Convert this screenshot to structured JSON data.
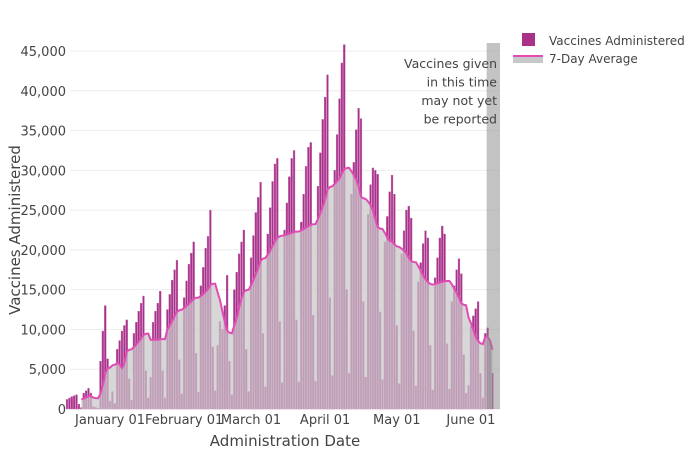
{
  "chart_data": {
    "type": "bar",
    "title": "",
    "xlabel": "Administration Date",
    "ylabel": "Vaccines Administered",
    "ylim": [
      0,
      46000
    ],
    "yticks": [
      0,
      5000,
      10000,
      15000,
      20000,
      25000,
      30000,
      35000,
      40000,
      45000
    ],
    "ytick_labels": [
      "0",
      "5,000",
      "10,000",
      "15,000",
      "20,000",
      "25,000",
      "30,000",
      "35,000",
      "40,000",
      "45,000"
    ],
    "xticks": [
      {
        "label": "January 01",
        "day_index": 18
      },
      {
        "label": "February 01",
        "day_index": 49
      },
      {
        "label": "March 01",
        "day_index": 77
      },
      {
        "label": "April 01",
        "day_index": 108
      },
      {
        "label": "May 01",
        "day_index": 138
      },
      {
        "label": "June 01",
        "day_index": 169
      }
    ],
    "start_date": "2020-12-14",
    "grid": true,
    "legend_placement": "top-right",
    "series": [
      {
        "name": "Vaccines Administered",
        "type": "bar",
        "color": "#a8318a",
        "values": [
          1200,
          1380,
          1560,
          1680,
          1800,
          600,
          180,
          2000,
          2300,
          2600,
          2000,
          300,
          200,
          100,
          6000,
          9800,
          13000,
          6300,
          1000,
          2200,
          700,
          7500,
          8600,
          9800,
          10500,
          11200,
          3800,
          1100,
          9500,
          10900,
          12300,
          13300,
          14200,
          4800,
          1400,
          4000,
          10900,
          12300,
          13300,
          14800,
          4800,
          1400,
          12500,
          14400,
          16200,
          17500,
          18700,
          6200,
          1900,
          14000,
          16100,
          18200,
          19600,
          21000,
          7000,
          2100,
          15500,
          17800,
          20200,
          21700,
          25000,
          7800,
          2300,
          8000,
          11000,
          10000,
          13000,
          16800,
          6000,
          1800,
          15000,
          17200,
          19500,
          21000,
          22500,
          7500,
          2200,
          19000,
          21800,
          24700,
          26600,
          28500,
          9500,
          2800,
          22000,
          25300,
          28600,
          30800,
          31500,
          11000,
          3300,
          22500,
          25900,
          29200,
          31500,
          32500,
          11200,
          3400,
          23500,
          27000,
          30500,
          32900,
          33500,
          11800,
          3500,
          28000,
          32200,
          36400,
          39200,
          42000,
          14000,
          4200,
          30000,
          34500,
          39000,
          43500,
          45800,
          15000,
          4500,
          27000,
          31000,
          35100,
          37800,
          36500,
          13500,
          4000,
          24500,
          28200,
          30300,
          30000,
          29500,
          12200,
          3700,
          21000,
          24200,
          27300,
          29400,
          27000,
          10500,
          3200,
          19500,
          22400,
          25000,
          25500,
          24000,
          9800,
          2900,
          16000,
          18400,
          20800,
          22400,
          21500,
          8000,
          2400,
          16500,
          19000,
          21500,
          23000,
          22000,
          8200,
          2500,
          13500,
          15500,
          17500,
          18900,
          17000,
          6800,
          2000,
          3000,
          10400,
          11700,
          12600,
          13500,
          4500,
          1400,
          9500,
          10200,
          8500,
          4500
        ]
      },
      {
        "name": "7-Day Average",
        "type": "area-line",
        "rolling_window": 7,
        "line_color": "#e04cb4",
        "fill_color": "#c8c8c8"
      }
    ],
    "annotation": {
      "lines": [
        "Vaccines given",
        "in this time",
        "may not yet",
        "be reported"
      ],
      "shaded_days": 3
    }
  }
}
